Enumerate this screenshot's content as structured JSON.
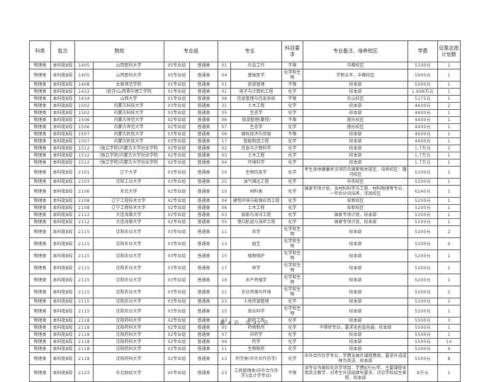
{
  "page": {
    "footer": "第 4 页，共 42 页"
  },
  "table": {
    "headers": {
      "subject": "科类",
      "batch": "批次",
      "school": "院校",
      "group": "专业组",
      "major": "专业",
      "req": "科目要求",
      "note": "专业备注、培养校区",
      "fee": "学费",
      "count": "征集志愿计划数"
    },
    "rows": [
      [
        "物理类",
        "本科批B段",
        "1405",
        "山西医科大学",
        "05专业组",
        "普通类",
        "01",
        "社会工作",
        "不限",
        "中都校区",
        "5100元",
        "1"
      ],
      [
        "物理类",
        "本科批B段",
        "1405",
        "山西医科大学",
        "05专业组",
        "普通类",
        "04",
        "基础医学",
        "化学和生物",
        "学制五年，中都校区",
        "5600元",
        "1"
      ],
      [
        "物理类",
        "本科批B段",
        "1408",
        "太原师范学院",
        "01专业组",
        "普通类",
        "01",
        "旅游管理",
        "不限",
        "校本部",
        "5000元",
        "1"
      ],
      [
        "物理类",
        "本科批B段",
        "1422",
        "(民办)山西晋中理工学院",
        "01专业组",
        "普通类",
        "01",
        "电子与计算机工程",
        "化学",
        "校本部",
        "1.698万元",
        "1"
      ],
      [
        "物理类",
        "本科批B段",
        "1434",
        "山西大学",
        "01专业组",
        "普通类",
        "08",
        "信息管理与信息系统",
        "不限",
        "东山校区",
        "5175元",
        "1"
      ],
      [
        "物理类",
        "本科批B段",
        "1502",
        "内蒙古科技大学",
        "03专业组",
        "普通类",
        "31",
        "土木工程",
        "化学",
        "校本部",
        "4600元",
        "2"
      ],
      [
        "物理类",
        "本科批B段",
        "1502",
        "内蒙古科技大学",
        "03专业组",
        "普通类",
        "35",
        "生态学",
        "化学",
        "校本部",
        "4600元",
        "1"
      ],
      [
        "物理类",
        "本科批B段",
        "1506",
        "内蒙古师范大学",
        "02专业组",
        "普通类",
        "06",
        "旅游管理(蒙授)",
        "不限",
        "盛乐校区",
        "4400元",
        "1"
      ],
      [
        "物理类",
        "本科批B段",
        "1506",
        "内蒙古师范大学",
        "02专业组",
        "普通类",
        "07",
        "生态学",
        "化学",
        "盛乐校区",
        "4400元",
        "1"
      ],
      [
        "物理类",
        "本科批B段",
        "1507",
        "内蒙古民族大学",
        "03专业组",
        "普通类",
        "06",
        "国际经济与贸易",
        "不限",
        "校本部",
        "4600元",
        "1"
      ],
      [
        "物理类",
        "本科批B段",
        "1507",
        "内蒙古民族大学",
        "03专业组",
        "普通类",
        "17",
        "智能制造工程",
        "化学",
        "校本部",
        "4600元",
        "1"
      ],
      [
        "物理类",
        "本科批B段",
        "1512",
        "(独立学院)内蒙古大学创业学院",
        "02专业组",
        "普通类",
        "02",
        "信息与计算科学",
        "化学",
        "校本部",
        "1.7万元",
        "2"
      ],
      [
        "物理类",
        "本科批B段",
        "1512",
        "(独立学院)内蒙古大学创业学院",
        "02专业组",
        "普通类",
        "03",
        "土木工程",
        "化学",
        "校本部",
        "1.7万元",
        "1"
      ],
      [
        "物理类",
        "本科批B段",
        "1512",
        "(独立学院)内蒙古大学创业学院",
        "02专业组",
        "普通类",
        "04",
        "环境科学",
        "化学",
        "校本部",
        "1.7万元",
        "1"
      ],
      [
        "物理类",
        "本科批B段",
        "2101",
        "辽宁大学",
        "03专业组",
        "普通类",
        "20",
        "生物信息学",
        "化学",
        "考生身体健康状况须符合国家相关规定，培养校区：蒲河校区",
        "5200元",
        "1"
      ],
      [
        "物理类",
        "本科批B段",
        "2103",
        "沈阳工业大学",
        "03专业组",
        "普通类",
        "25",
        "油气储运工程",
        "化学",
        "中央校区",
        "5200元",
        "1"
      ],
      [
        "物理类",
        "本科批B段",
        "2106",
        "东北大学",
        "02专业组",
        "普通类",
        "10",
        "材料类",
        "化学",
        "国家专项计划，含材料科学与工程、材料物理等专业，一年后分流培养，浑南校区",
        "6240元",
        "1"
      ],
      [
        "物理类",
        "本科批B段",
        "2108",
        "辽宁工程技术大学",
        "02专业组",
        "普通类",
        "04",
        "建筑环境与能源应用工程",
        "化学",
        "阜新校区",
        "5200元",
        "1"
      ],
      [
        "物理类",
        "本科批B段",
        "2108",
        "辽宁工程技术大学",
        "02专业组",
        "普通类",
        "06",
        "土木工程",
        "化学",
        "阜新校区",
        "5200元",
        "1"
      ],
      [
        "物理类",
        "本科批B段",
        "2112",
        "大连海事大学",
        "02专业组",
        "普通类",
        "03",
        "船舶与海洋工程",
        "化学",
        "国家专项计划，校本部",
        "5200元",
        "1"
      ],
      [
        "物理类",
        "本科批B段",
        "2112",
        "大连海事大学",
        "02专业组",
        "普通类",
        "05",
        "港口航道与海岸工程",
        "化学",
        "国家专项计划，校本部",
        "5200元",
        "1"
      ],
      [
        "物理类",
        "本科批B段",
        "2115",
        "沈阳农业大学",
        "03专业组",
        "普通类",
        "11",
        "农学",
        "化学和生物",
        "校本部",
        "5200元",
        "2"
      ],
      [
        "物理类",
        "本科批B段",
        "2115",
        "沈阳农业大学",
        "03专业组",
        "普通类",
        "13",
        "园艺",
        "化学和生物",
        "校本部",
        "5200元",
        "4"
      ],
      [
        "物理类",
        "本科批B段",
        "2115",
        "沈阳农业大学",
        "03专业组",
        "普通类",
        "15",
        "植物保护",
        "化学和生物",
        "校本部",
        "5200元",
        "1"
      ],
      [
        "物理类",
        "本科批B段",
        "2115",
        "沈阳农业大学",
        "03专业组",
        "普通类",
        "17",
        "林学",
        "化学和生物",
        "校本部",
        "5200元",
        "1"
      ],
      [
        "物理类",
        "本科批B段",
        "2115",
        "沈阳农业大学",
        "03专业组",
        "普通类",
        "19",
        "水产养殖学",
        "化学和生物",
        "校本部",
        "5200元",
        "1"
      ],
      [
        "物理类",
        "本科批B段",
        "2115",
        "沈阳农业大学",
        "03专业组",
        "普通类",
        "21",
        "农业资源与环境",
        "化学和生物",
        "校本部",
        "5200元",
        "2"
      ],
      [
        "物理类",
        "本科批B段",
        "2115",
        "沈阳农业大学",
        "03专业组",
        "普通类",
        "23",
        "土地资源管理",
        "化学",
        "校本部",
        "5200元",
        "2"
      ],
      [
        "物理类",
        "本科批B段",
        "2115",
        "沈阳农业大学",
        "03专业组",
        "普通类",
        "25",
        "草业科学",
        "化学和生物",
        "校本部",
        "5200元",
        "1"
      ],
      [
        "物理类",
        "本科批B段",
        "2118",
        "沈阳药科大学",
        "02专业组",
        "普通类",
        "03",
        "制药工程",
        "化学",
        "校本部",
        "5500元",
        "3"
      ],
      [
        "物理类",
        "本科批B段",
        "2118",
        "沈阳药科大学",
        "02专业组",
        "普通类",
        "05",
        "药物制剂",
        "化学",
        "不得转专业，要求无色盲色弱，校本部",
        "5500元",
        "1"
      ],
      [
        "物理类",
        "本科批B段",
        "2118",
        "沈阳药科大学",
        "02专业组",
        "普通类",
        "07",
        "中药学",
        "化学",
        "校本部",
        "5500元",
        "1"
      ],
      [
        "物理类",
        "本科批B段",
        "2118",
        "沈阳药科大学",
        "02专业组",
        "普通类",
        "09",
        "药学",
        "化学",
        "校本部",
        "5500元",
        "14"
      ],
      [
        "物理类",
        "本科批B段",
        "2118",
        "沈阳药科大学",
        "02专业组",
        "普通类",
        "11",
        "生物制药",
        "化学",
        "校本部",
        "5200元",
        "4"
      ],
      [
        "物理类",
        "本科批B段",
        "2118",
        "沈阳药科大学",
        "02专业组",
        "普通类",
        "13",
        "药学类(中外合作办学)",
        "化学",
        "中外合作办学专业，学费含国外课程费用，要求外语语种为英语，校本部",
        "5500元",
        "8"
      ],
      [
        "物理类",
        "本科批B段",
        "2123",
        "东北财经大学",
        "05专业组",
        "普通类",
        "23",
        "工商管理类(中外合作办学)(会计学专业)",
        "不限",
        "该专业为国际化办学项目，学费8万元/年，主要课程采用英文教学，对考生外语成绩有要求，详见学校招生章程，校本部",
        "8万元",
        "1"
      ]
    ]
  }
}
